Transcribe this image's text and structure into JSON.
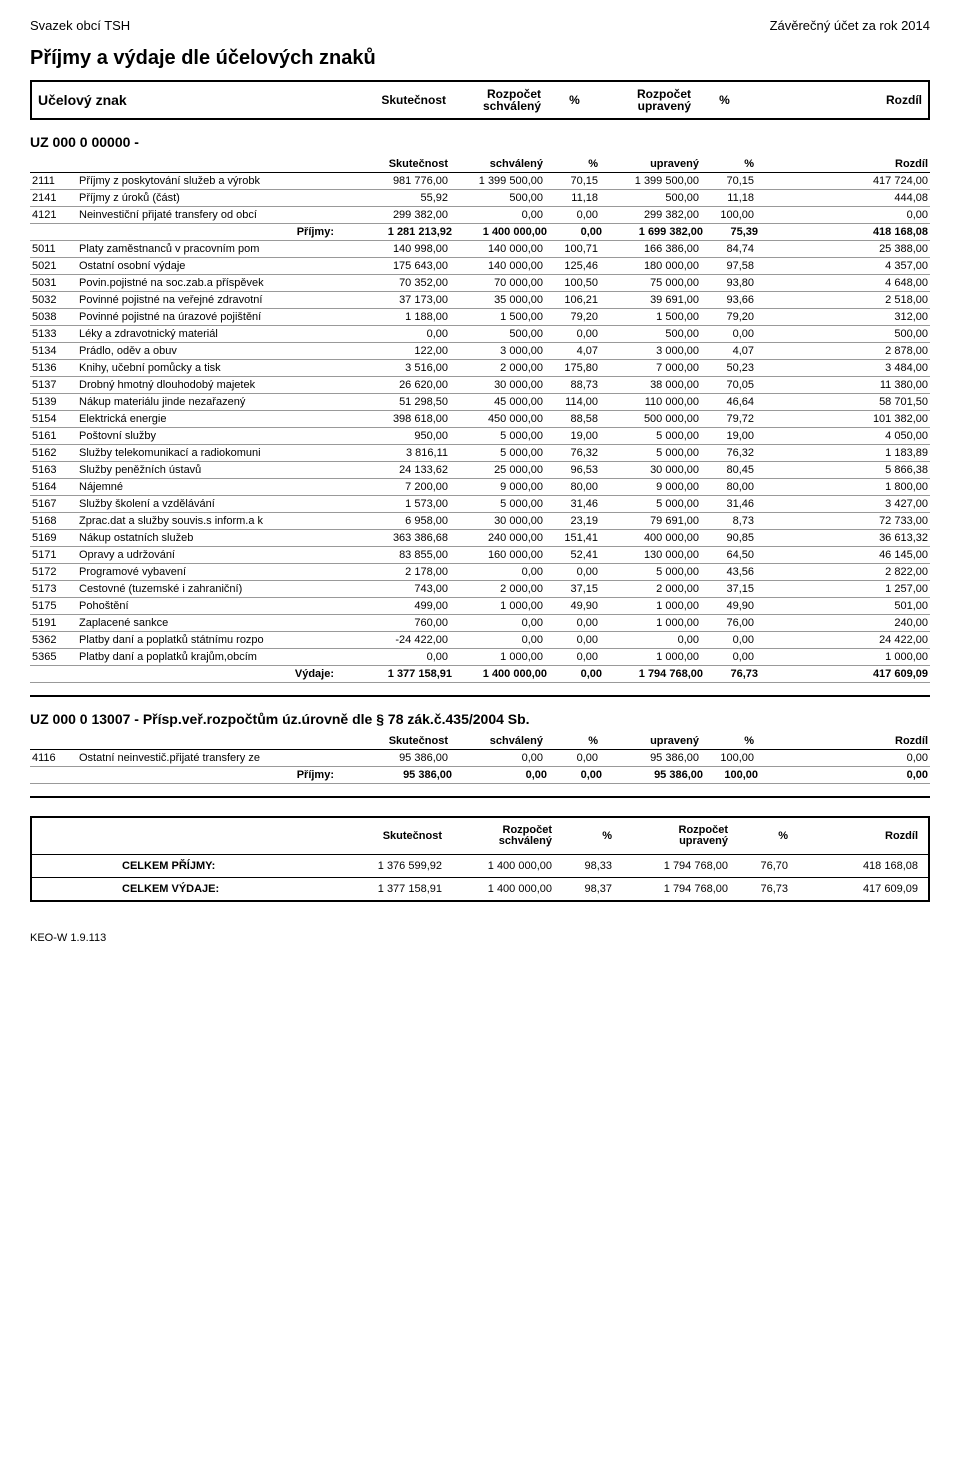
{
  "header": {
    "org": "Svazek obcí TSH",
    "doc": "Závěrečný účet za rok 2014"
  },
  "title": "Příjmy a výdaje dle účelových znaků",
  "cols": {
    "ucelovy": "Učelový znak",
    "skut": "Skutečnost",
    "rozpocet": "Rozpočet",
    "schvaleny": "schválený",
    "upraveny": "upravený",
    "pct": "%",
    "rozdil": "Rozdíl"
  },
  "section1": {
    "code": "UZ 000  0   00000  -",
    "sub": {
      "skut": "Skutečnost",
      "sch": "schválený",
      "p1": "%",
      "upr": "upravený",
      "p2": "%",
      "roz": "Rozdíl"
    },
    "rows": [
      {
        "code": "2111",
        "name": "Příjmy z poskytování služeb a výrobk",
        "skut": "981 776,00",
        "sch": "1 399 500,00",
        "p1": "70,15",
        "upr": "1 399 500,00",
        "p2": "70,15",
        "roz": "417 724,00"
      },
      {
        "code": "2141",
        "name": "Příjmy z úroků (část)",
        "skut": "55,92",
        "sch": "500,00",
        "p1": "11,18",
        "upr": "500,00",
        "p2": "11,18",
        "roz": "444,08"
      },
      {
        "code": "4121",
        "name": "Neinvestiční přijaté transfery od obcí",
        "skut": "299 382,00",
        "sch": "0,00",
        "p1": "0,00",
        "upr": "299 382,00",
        "p2": "100,00",
        "roz": "0,00"
      },
      {
        "code": "",
        "name": "Příjmy:",
        "skut": "1 281 213,92",
        "sch": "1 400 000,00",
        "p1": "0,00",
        "upr": "1 699 382,00",
        "p2": "75,39",
        "roz": "418 168,08",
        "bold": true,
        "align": "right"
      },
      {
        "code": "5011",
        "name": "Platy zaměstnanců v pracovním pom",
        "skut": "140 998,00",
        "sch": "140 000,00",
        "p1": "100,71",
        "upr": "166 386,00",
        "p2": "84,74",
        "roz": "25 388,00"
      },
      {
        "code": "5021",
        "name": "Ostatní osobní výdaje",
        "skut": "175 643,00",
        "sch": "140 000,00",
        "p1": "125,46",
        "upr": "180 000,00",
        "p2": "97,58",
        "roz": "4 357,00"
      },
      {
        "code": "5031",
        "name": "Povin.pojistné na soc.zab.a příspěvek",
        "skut": "70 352,00",
        "sch": "70 000,00",
        "p1": "100,50",
        "upr": "75 000,00",
        "p2": "93,80",
        "roz": "4 648,00"
      },
      {
        "code": "5032",
        "name": "Povinné pojistné na veřejné zdravotní",
        "skut": "37 173,00",
        "sch": "35 000,00",
        "p1": "106,21",
        "upr": "39 691,00",
        "p2": "93,66",
        "roz": "2 518,00"
      },
      {
        "code": "5038",
        "name": "Povinné pojistné na úrazové pojištění",
        "skut": "1 188,00",
        "sch": "1 500,00",
        "p1": "79,20",
        "upr": "1 500,00",
        "p2": "79,20",
        "roz": "312,00"
      },
      {
        "code": "5133",
        "name": "Léky a zdravotnický materiál",
        "skut": "0,00",
        "sch": "500,00",
        "p1": "0,00",
        "upr": "500,00",
        "p2": "0,00",
        "roz": "500,00"
      },
      {
        "code": "5134",
        "name": "Prádlo, oděv a obuv",
        "skut": "122,00",
        "sch": "3 000,00",
        "p1": "4,07",
        "upr": "3 000,00",
        "p2": "4,07",
        "roz": "2 878,00"
      },
      {
        "code": "5136",
        "name": "Knihy, učební pomůcky a tisk",
        "skut": "3 516,00",
        "sch": "2 000,00",
        "p1": "175,80",
        "upr": "7 000,00",
        "p2": "50,23",
        "roz": "3 484,00"
      },
      {
        "code": "5137",
        "name": "Drobný hmotný dlouhodobý majetek",
        "skut": "26 620,00",
        "sch": "30 000,00",
        "p1": "88,73",
        "upr": "38 000,00",
        "p2": "70,05",
        "roz": "11 380,00"
      },
      {
        "code": "5139",
        "name": "Nákup materiálu jinde nezařazený",
        "skut": "51 298,50",
        "sch": "45 000,00",
        "p1": "114,00",
        "upr": "110 000,00",
        "p2": "46,64",
        "roz": "58 701,50"
      },
      {
        "code": "5154",
        "name": "Elektrická energie",
        "skut": "398 618,00",
        "sch": "450 000,00",
        "p1": "88,58",
        "upr": "500 000,00",
        "p2": "79,72",
        "roz": "101 382,00"
      },
      {
        "code": "5161",
        "name": "Poštovní služby",
        "skut": "950,00",
        "sch": "5 000,00",
        "p1": "19,00",
        "upr": "5 000,00",
        "p2": "19,00",
        "roz": "4 050,00"
      },
      {
        "code": "5162",
        "name": "Služby telekomunikací a radiokomuni",
        "skut": "3 816,11",
        "sch": "5 000,00",
        "p1": "76,32",
        "upr": "5 000,00",
        "p2": "76,32",
        "roz": "1 183,89"
      },
      {
        "code": "5163",
        "name": "Služby peněžních ústavů",
        "skut": "24 133,62",
        "sch": "25 000,00",
        "p1": "96,53",
        "upr": "30 000,00",
        "p2": "80,45",
        "roz": "5 866,38"
      },
      {
        "code": "5164",
        "name": "Nájemné",
        "skut": "7 200,00",
        "sch": "9 000,00",
        "p1": "80,00",
        "upr": "9 000,00",
        "p2": "80,00",
        "roz": "1 800,00"
      },
      {
        "code": "5167",
        "name": "Služby školení a vzdělávání",
        "skut": "1 573,00",
        "sch": "5 000,00",
        "p1": "31,46",
        "upr": "5 000,00",
        "p2": "31,46",
        "roz": "3 427,00"
      },
      {
        "code": "5168",
        "name": "Zprac.dat a služby souvis.s inform.a k",
        "skut": "6 958,00",
        "sch": "30 000,00",
        "p1": "23,19",
        "upr": "79 691,00",
        "p2": "8,73",
        "roz": "72 733,00"
      },
      {
        "code": "5169",
        "name": "Nákup ostatních služeb",
        "skut": "363 386,68",
        "sch": "240 000,00",
        "p1": "151,41",
        "upr": "400 000,00",
        "p2": "90,85",
        "roz": "36 613,32"
      },
      {
        "code": "5171",
        "name": "Opravy a udržování",
        "skut": "83 855,00",
        "sch": "160 000,00",
        "p1": "52,41",
        "upr": "130 000,00",
        "p2": "64,50",
        "roz": "46 145,00"
      },
      {
        "code": "5172",
        "name": "Programové vybavení",
        "skut": "2 178,00",
        "sch": "0,00",
        "p1": "0,00",
        "upr": "5 000,00",
        "p2": "43,56",
        "roz": "2 822,00"
      },
      {
        "code": "5173",
        "name": "Cestovné (tuzemské i zahraniční)",
        "skut": "743,00",
        "sch": "2 000,00",
        "p1": "37,15",
        "upr": "2 000,00",
        "p2": "37,15",
        "roz": "1 257,00"
      },
      {
        "code": "5175",
        "name": "Pohoštění",
        "skut": "499,00",
        "sch": "1 000,00",
        "p1": "49,90",
        "upr": "1 000,00",
        "p2": "49,90",
        "roz": "501,00"
      },
      {
        "code": "5191",
        "name": "Zaplacené sankce",
        "skut": "760,00",
        "sch": "0,00",
        "p1": "0,00",
        "upr": "1 000,00",
        "p2": "76,00",
        "roz": "240,00"
      },
      {
        "code": "5362",
        "name": "Platby daní a poplatků státnímu rozpo",
        "skut": "-24 422,00",
        "sch": "0,00",
        "p1": "0,00",
        "upr": "0,00",
        "p2": "0,00",
        "roz": "24 422,00"
      },
      {
        "code": "5365",
        "name": "Platby daní a poplatků krajům,obcím",
        "skut": "0,00",
        "sch": "1 000,00",
        "p1": "0,00",
        "upr": "1 000,00",
        "p2": "0,00",
        "roz": "1 000,00"
      },
      {
        "code": "",
        "name": "Výdaje:",
        "skut": "1 377 158,91",
        "sch": "1 400 000,00",
        "p1": "0,00",
        "upr": "1 794 768,00",
        "p2": "76,73",
        "roz": "417 609,09",
        "bold": true,
        "align": "right"
      }
    ]
  },
  "section2": {
    "code": "UZ 000  0   13007  - Přísp.veř.rozpočtům úz.úrovně dle § 78 zák.č.435/2004 Sb.",
    "sub": {
      "skut": "Skutečnost",
      "sch": "schválený",
      "p1": "%",
      "upr": "upravený",
      "p2": "%",
      "roz": "Rozdíl"
    },
    "rows": [
      {
        "code": "4116",
        "name": "Ostatní neinvestič.přijaté transfery ze",
        "skut": "95 386,00",
        "sch": "0,00",
        "p1": "0,00",
        "upr": "95 386,00",
        "p2": "100,00",
        "roz": "0,00"
      },
      {
        "code": "",
        "name": "Příjmy:",
        "skut": "95 386,00",
        "sch": "0,00",
        "p1": "0,00",
        "upr": "95 386,00",
        "p2": "100,00",
        "roz": "0,00",
        "bold": true,
        "align": "right"
      }
    ]
  },
  "totals": {
    "head": {
      "skut": "Skutečnost",
      "rozpocet": "Rozpočet",
      "sch": "schválený",
      "p": "%",
      "upr": "upravený",
      "roz": "Rozdíl"
    },
    "rows": [
      {
        "label": "CELKEM PŘÍJMY:",
        "skut": "1 376 599,92",
        "sch": "1 400 000,00",
        "p1": "98,33",
        "upr": "1 794 768,00",
        "p2": "76,70",
        "roz": "418 168,08"
      },
      {
        "label": "CELKEM VÝDAJE:",
        "skut": "1 377 158,91",
        "sch": "1 400 000,00",
        "p1": "98,37",
        "upr": "1 794 768,00",
        "p2": "76,73",
        "roz": "417 609,09"
      }
    ]
  },
  "footer": "KEO-W 1.9.113"
}
